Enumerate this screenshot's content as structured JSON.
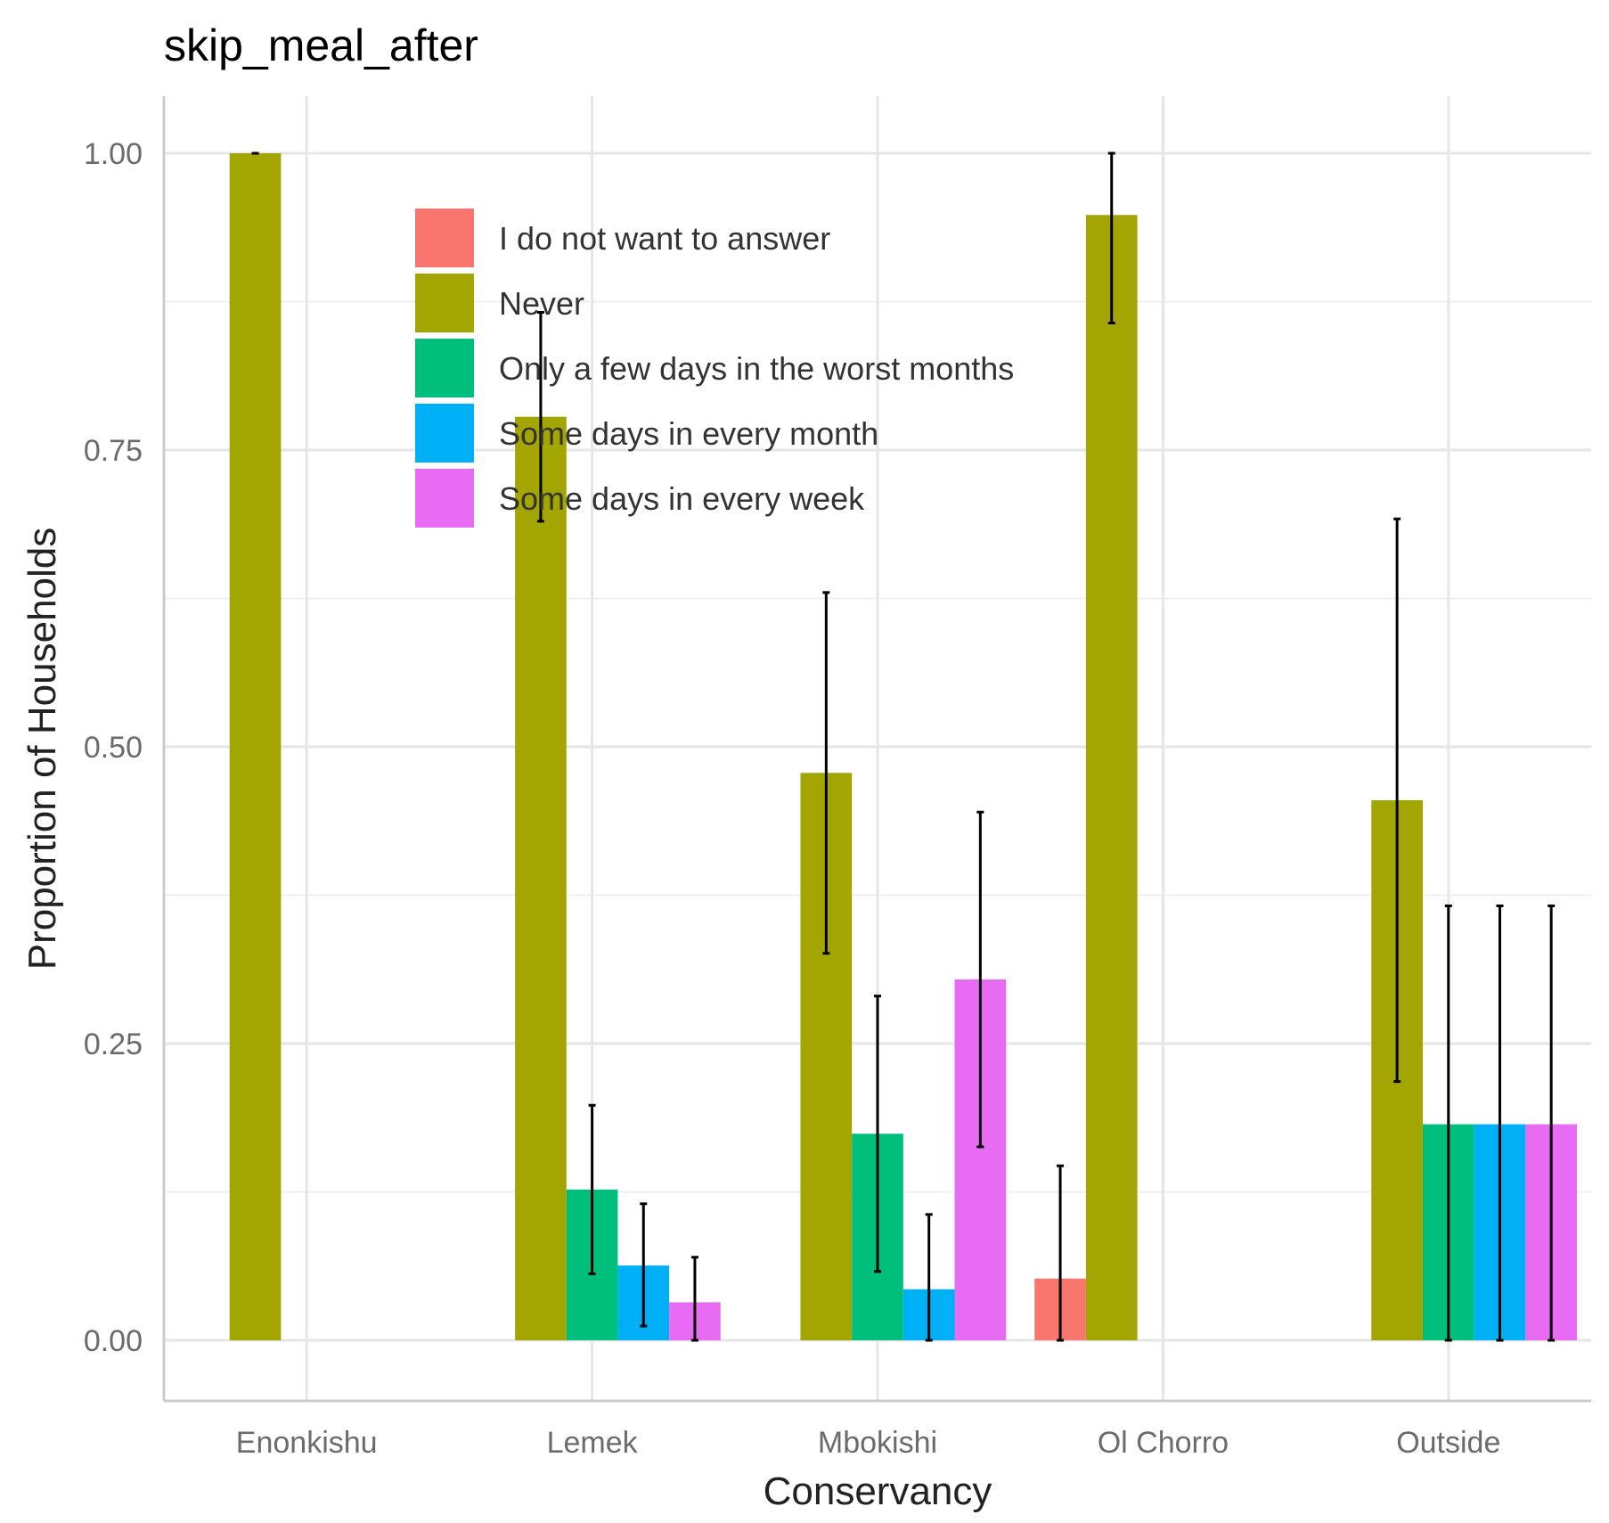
{
  "chart_data": {
    "type": "bar",
    "title": "skip_meal_after",
    "xlabel": "Conservancy",
    "ylabel": "Proportion of Households",
    "categories": [
      "Enonkishu",
      "Lemek",
      "Mbokishi",
      "Ol Chorro",
      "Outside"
    ],
    "ylim": [
      -0.05,
      1.05
    ],
    "yticks": [
      0.0,
      0.25,
      0.5,
      0.75,
      1.0
    ],
    "ytick_labels": [
      "0.00",
      "0.25",
      "0.50",
      "0.75",
      "1.00"
    ],
    "grid": true,
    "legend_position": "inside-top-left",
    "series": [
      {
        "name": "I do not want to answer",
        "color": "#F8766D",
        "values": [
          null,
          null,
          null,
          0.052,
          null
        ],
        "err_low": [
          null,
          null,
          null,
          0.0,
          null
        ],
        "err_high": [
          null,
          null,
          null,
          0.147,
          null
        ]
      },
      {
        "name": "Never",
        "color": "#A3A500",
        "values": [
          1.0,
          0.778,
          0.478,
          0.948,
          0.455
        ],
        "err_low": [
          1.0,
          0.69,
          0.326,
          0.857,
          0.218
        ],
        "err_high": [
          1.0,
          0.866,
          0.63,
          1.0,
          0.692
        ]
      },
      {
        "name": "Only a few days in the worst months",
        "color": "#00BF7D",
        "values": [
          null,
          0.127,
          0.174,
          null,
          0.182
        ],
        "err_low": [
          null,
          0.056,
          0.058,
          null,
          0.0
        ],
        "err_high": [
          null,
          0.198,
          0.29,
          null,
          0.366
        ]
      },
      {
        "name": "Some days in every month",
        "color": "#00B0F6",
        "values": [
          null,
          0.063,
          0.043,
          null,
          0.182
        ],
        "err_low": [
          null,
          0.012,
          0.0,
          null,
          0.0
        ],
        "err_high": [
          null,
          0.115,
          0.106,
          null,
          0.366
        ]
      },
      {
        "name": "Some days in every week",
        "color": "#E76BF3",
        "values": [
          null,
          0.032,
          0.304,
          null,
          0.182
        ],
        "err_low": [
          null,
          0.0,
          0.163,
          null,
          0.0
        ],
        "err_high": [
          null,
          0.07,
          0.445,
          null,
          0.366
        ]
      }
    ]
  }
}
